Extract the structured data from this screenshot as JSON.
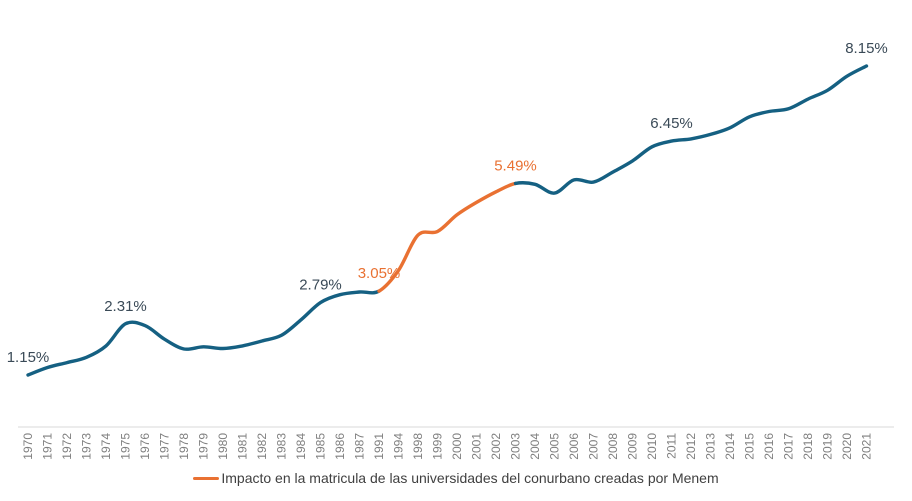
{
  "chart_data": {
    "type": "line",
    "title": "",
    "xlabel": "",
    "ylabel": "",
    "unit": "%",
    "grid": false,
    "y_axis_visible": false,
    "legend_position": "bottom-center",
    "categories": [
      "1970",
      "1971",
      "1972",
      "1973",
      "1974",
      "1975",
      "1976",
      "1977",
      "1978",
      "1979",
      "1980",
      "1981",
      "1982",
      "1983",
      "1984",
      "1985",
      "1986",
      "1987",
      "1991",
      "1994",
      "1998",
      "1999",
      "2000",
      "2001",
      "2002",
      "2003",
      "2004",
      "2005",
      "2006",
      "2007",
      "2008",
      "2009",
      "2010",
      "2011",
      "2012",
      "2013",
      "2014",
      "2015",
      "2016",
      "2017",
      "2018",
      "2019",
      "2020",
      "2021"
    ],
    "values": [
      1.15,
      1.32,
      1.43,
      1.55,
      1.81,
      2.31,
      2.27,
      1.96,
      1.74,
      1.79,
      1.75,
      1.81,
      1.92,
      2.05,
      2.4,
      2.79,
      2.97,
      3.03,
      3.05,
      3.52,
      4.32,
      4.4,
      4.78,
      5.06,
      5.3,
      5.49,
      5.47,
      5.27,
      5.57,
      5.52,
      5.75,
      6.0,
      6.32,
      6.45,
      6.5,
      6.6,
      6.75,
      7.0,
      7.12,
      7.18,
      7.4,
      7.6,
      7.92,
      8.15
    ],
    "highlight_segment": {
      "label": "Impacto en la matricula de las universidades del conurbano creadas por Menem",
      "from": "1991",
      "to": "2003"
    },
    "annotations": [
      {
        "category": "1970",
        "label": "1.15%",
        "series": "base"
      },
      {
        "category": "1975",
        "label": "2.31%",
        "series": "base"
      },
      {
        "category": "1985",
        "label": "2.79%",
        "series": "base"
      },
      {
        "category": "1991",
        "label": "3.05%",
        "series": "menem"
      },
      {
        "category": "2003",
        "label": "5.49%",
        "series": "menem"
      },
      {
        "category": "2011",
        "label": "6.45%",
        "series": "base"
      },
      {
        "category": "2021",
        "label": "8.15%",
        "series": "base"
      }
    ],
    "colors": {
      "line": "#156082",
      "highlight": "#E97132",
      "annotation_dark": "#3a4a57",
      "annotation_highlight": "#E97132",
      "axis_labels": "#7f7f7f",
      "axis_line": "#D9D9D9",
      "legend_text": "#404040"
    }
  }
}
